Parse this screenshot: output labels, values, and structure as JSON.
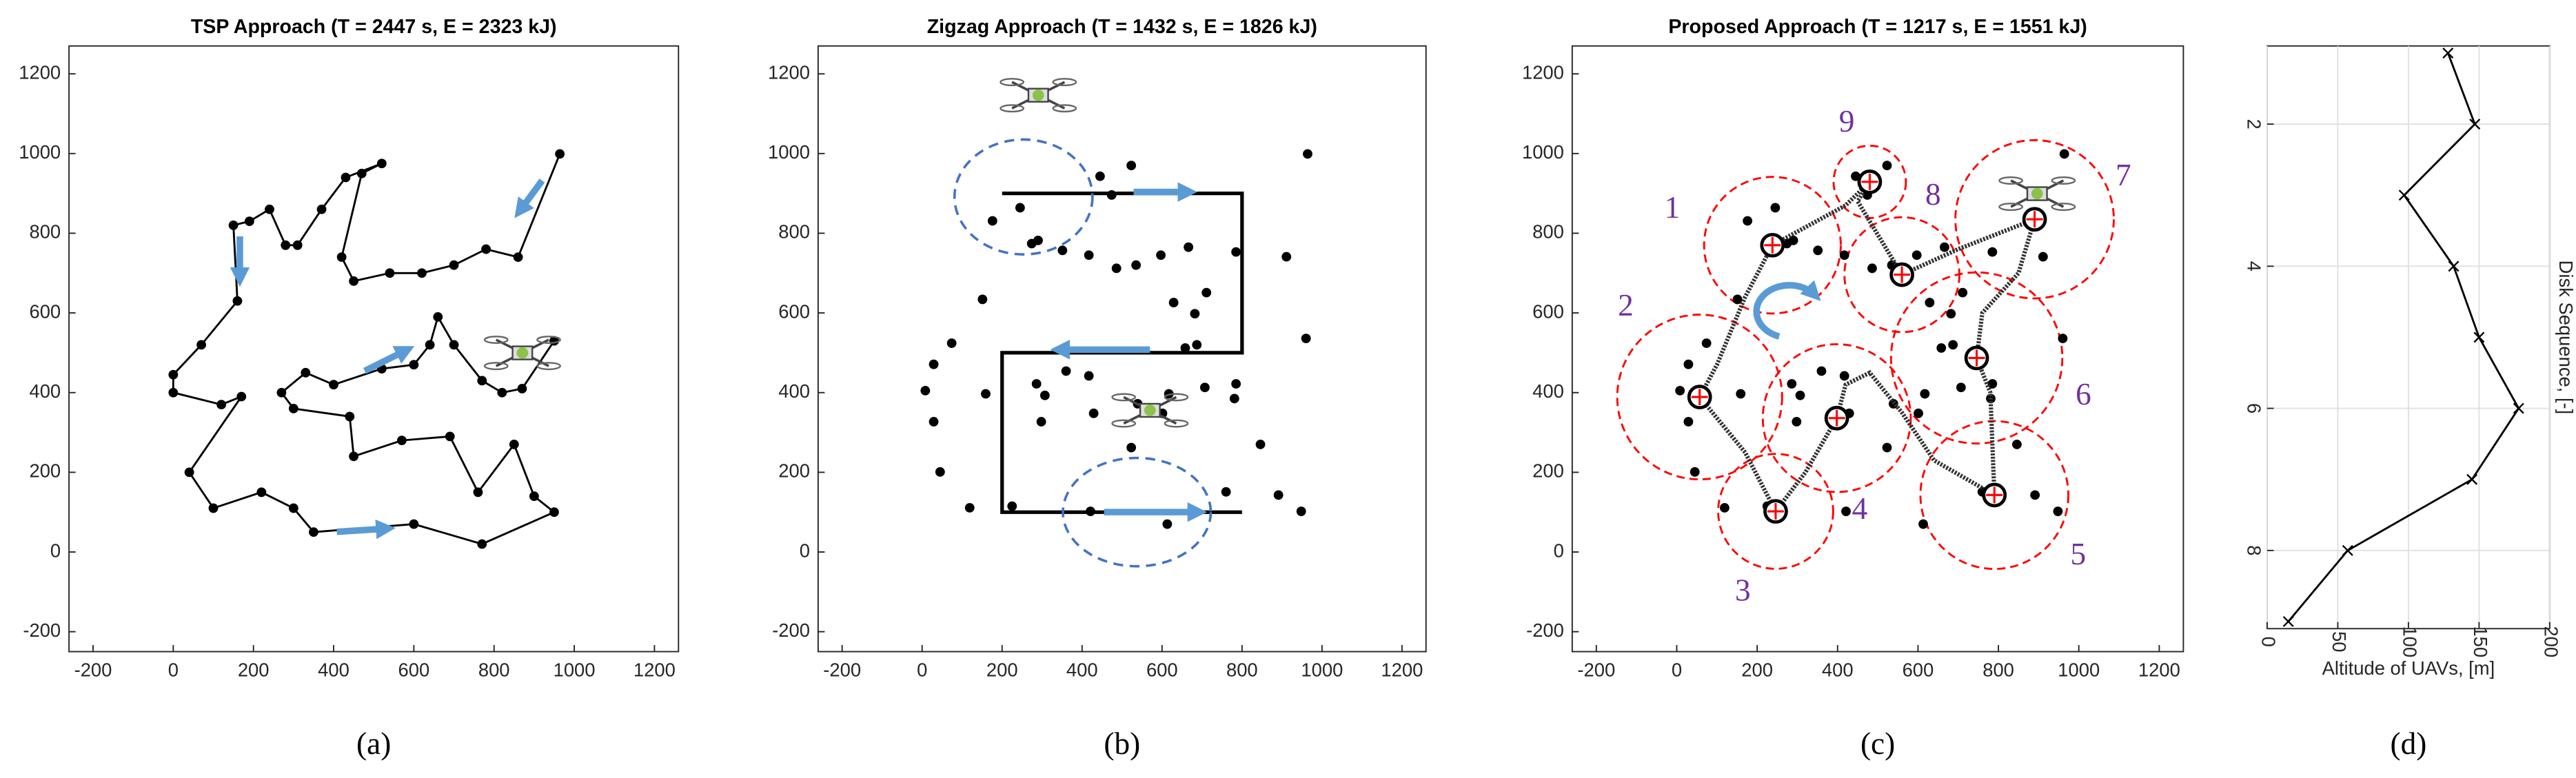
{
  "chart_data": [
    {
      "type": "line",
      "title": "TSP Approach (T = 2447 s, E = 2323 kJ)",
      "panel_label": "(a)",
      "xlim": [
        -260,
        1260
      ],
      "ylim": [
        -250,
        1270
      ],
      "xticks": [
        -200,
        0,
        200,
        400,
        600,
        800,
        1000,
        1200
      ],
      "yticks": [
        -200,
        0,
        200,
        400,
        600,
        800,
        1000,
        1200
      ],
      "grid": false,
      "series": [
        {
          "color": "#000000",
          "line": true,
          "marker": "o",
          "x": [
            964,
            860,
            780,
            700,
            620,
            540,
            450,
            420,
            470,
            520,
            430,
            370,
            310,
            280,
            240,
            190,
            150,
            160,
            70,
            0,
            0,
            120,
            170,
            40,
            100,
            220,
            300,
            350,
            600,
            770,
            950,
            900,
            850,
            760,
            690,
            570,
            450,
            440,
            300,
            270,
            330,
            400,
            520,
            600,
            640,
            660,
            700,
            770,
            820,
            870,
            950
          ],
          "y": [
            999,
            740,
            760,
            720,
            700,
            700,
            680,
            740,
            950,
            975,
            940,
            860,
            770,
            770,
            860,
            830,
            820,
            630,
            520,
            445,
            400,
            370,
            390,
            200,
            110,
            150,
            110,
            50,
            70,
            20,
            100,
            140,
            270,
            150,
            290,
            280,
            240,
            340,
            360,
            400,
            450,
            420,
            460,
            470,
            520,
            590,
            520,
            430,
            400,
            410,
            530
          ]
        }
      ]
    },
    {
      "type": "line",
      "title": "Zigzag Approach (T = 1432 s, E = 1826 kJ)",
      "panel_label": "(b)",
      "xlim": [
        -260,
        1260
      ],
      "ylim": [
        -250,
        1270
      ],
      "xticks": [
        -200,
        0,
        200,
        400,
        600,
        800,
        1000,
        1200
      ],
      "yticks": [
        -200,
        0,
        200,
        400,
        600,
        800,
        1000,
        1200
      ],
      "grid": false,
      "series": [
        {
          "color": "#000000",
          "line": false,
          "marker": "o",
          "x": [
            445,
            523,
            964,
            176,
            245,
            274,
            290,
            474,
            351,
            417,
            486,
            535,
            597,
            666,
            785,
            911,
            711,
            629,
            682,
            151,
            687,
            658,
            74,
            29,
            8,
            159,
            960,
            360,
            286,
            307,
            417,
            429,
            539,
            601,
            617,
            707,
            785,
            781,
            29,
            45,
            298,
            523,
            846,
            891,
            760,
            948,
            225,
            119,
            613,
            421
          ],
          "y": [
            943,
            970,
            999,
            831,
            864,
            774,
            782,
            896,
            757,
            745,
            712,
            720,
            745,
            765,
            753,
            741,
            651,
            626,
            598,
            634,
            520,
            512,
            524,
            471,
            405,
            397,
            536,
            454,
            422,
            393,
            442,
            348,
            372,
            348,
            397,
            413,
            422,
            385,
            327,
            201,
            327,
            262,
            270,
            143,
            151,
            102,
            115,
            111,
            70,
            102
          ]
        },
        {
          "color": "#000000",
          "line": true,
          "marker": "none",
          "x": [
            800,
            200,
            200,
            800,
            800,
            200
          ],
          "y": [
            100,
            100,
            500,
            500,
            900,
            900
          ]
        }
      ]
    },
    {
      "type": "line",
      "title": "Proposed Approach (T = 1217 s, E = 1551 kJ)",
      "panel_label": "(c)",
      "xlim": [
        -260,
        1260
      ],
      "ylim": [
        -250,
        1270
      ],
      "xticks": [
        -200,
        0,
        200,
        400,
        600,
        800,
        1000,
        1200
      ],
      "yticks": [
        -200,
        0,
        200,
        400,
        600,
        800,
        1000,
        1200
      ],
      "grid": false,
      "series": [
        {
          "color": "#000000",
          "line": false,
          "marker": "o",
          "x": [
            445,
            523,
            964,
            176,
            245,
            274,
            290,
            474,
            351,
            417,
            486,
            535,
            597,
            666,
            785,
            911,
            711,
            629,
            682,
            151,
            687,
            658,
            74,
            29,
            8,
            159,
            960,
            360,
            286,
            307,
            417,
            429,
            539,
            601,
            617,
            707,
            785,
            781,
            29,
            45,
            298,
            523,
            846,
            891,
            760,
            948,
            225,
            119,
            613,
            421
          ],
          "y": [
            943,
            970,
            999,
            831,
            864,
            774,
            782,
            896,
            757,
            745,
            712,
            720,
            745,
            765,
            753,
            741,
            651,
            626,
            598,
            634,
            520,
            512,
            524,
            471,
            405,
            397,
            536,
            454,
            422,
            393,
            442,
            348,
            372,
            348,
            397,
            413,
            422,
            385,
            327,
            201,
            327,
            262,
            270,
            143,
            151,
            102,
            115,
            111,
            70,
            102
          ]
        },
        {
          "color": "#333333",
          "line": true,
          "marker": "none",
          "dashed": true,
          "x": [
            57,
            100,
            170,
            238,
            420,
            480,
            450,
            560,
            700,
            890,
            850,
            760,
            746,
            780,
            790,
            640,
            560,
            480,
            420,
            398,
            320,
            246,
            170,
            57
          ],
          "y": [
            389,
            470,
            640,
            770,
            870,
            929,
            880,
            696,
            760,
            835,
            700,
            600,
            487,
            400,
            143,
            230,
            350,
            450,
            420,
            336,
            200,
            102,
            250,
            389
          ]
        }
      ],
      "disks": {
        "color": "#ff0000",
        "label_color": "#7030a0",
        "labels": [
          "1",
          "2",
          "3",
          "4",
          "5",
          "6",
          "7",
          "8",
          "9"
        ],
        "x": [
          238,
          57,
          246,
          398,
          790,
          746,
          890,
          560,
          480
        ],
        "y": [
          770,
          389,
          102,
          336,
          143,
          487,
          835,
          696,
          929
        ],
        "r": [
          170,
          205,
          143,
          184,
          184,
          213,
          197,
          143,
          90
        ]
      }
    },
    {
      "type": "line",
      "panel_label": "(d)",
      "x_label": "Altitude of UAVs, [m]",
      "y_label": "Disk Sequence, [-]",
      "xlim": [
        0,
        200
      ],
      "ylim": [
        0.9,
        9.1
      ],
      "y_reversed": true,
      "xticks": [
        0,
        50,
        100,
        150,
        200
      ],
      "yticks": [
        2,
        4,
        6,
        8
      ],
      "grid": true,
      "series": [
        {
          "color": "#000000",
          "line": true,
          "marker": "x",
          "x": [
            128,
            147,
            97,
            132,
            150,
            178,
            145,
            57,
            15
          ],
          "y": [
            1,
            2,
            3,
            4,
            5,
            6,
            7,
            8,
            9
          ]
        }
      ]
    }
  ]
}
